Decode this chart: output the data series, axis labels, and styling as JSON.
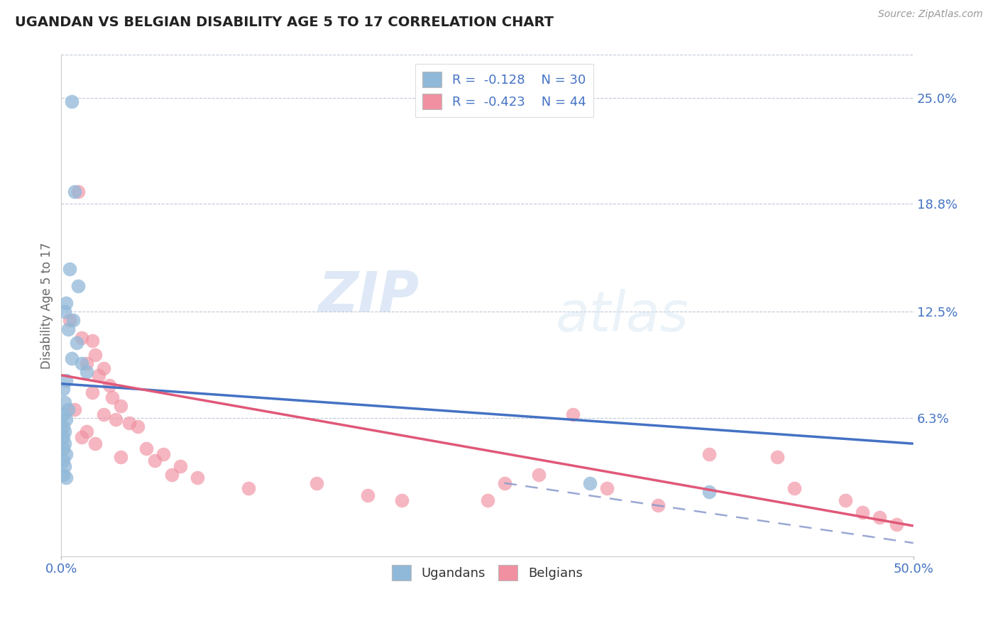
{
  "title": "UGANDAN VS BELGIAN DISABILITY AGE 5 TO 17 CORRELATION CHART",
  "source": "Source: ZipAtlas.com",
  "ylabel": "Disability Age 5 to 17",
  "ytick_labels": [
    "6.3%",
    "12.5%",
    "18.8%",
    "25.0%"
  ],
  "ytick_values": [
    0.063,
    0.125,
    0.188,
    0.25
  ],
  "xlim": [
    0.0,
    0.5
  ],
  "ylim": [
    -0.018,
    0.275
  ],
  "watermark_zip": "ZIP",
  "watermark_atlas": "atlas",
  "ugandan_color": "#90b8d8",
  "belgian_color": "#f090a0",
  "ugandan_line_color": "#4472c4",
  "belgian_line_color": "#e05878",
  "dashed_line_color": "#8899cc",
  "ugandan_points": [
    [
      0.006,
      0.248
    ],
    [
      0.008,
      0.195
    ],
    [
      0.005,
      0.15
    ],
    [
      0.01,
      0.14
    ],
    [
      0.003,
      0.13
    ],
    [
      0.002,
      0.125
    ],
    [
      0.007,
      0.12
    ],
    [
      0.004,
      0.115
    ],
    [
      0.009,
      0.107
    ],
    [
      0.006,
      0.098
    ],
    [
      0.012,
      0.095
    ],
    [
      0.015,
      0.09
    ],
    [
      0.003,
      0.085
    ],
    [
      0.001,
      0.08
    ],
    [
      0.002,
      0.072
    ],
    [
      0.004,
      0.068
    ],
    [
      0.001,
      0.065
    ],
    [
      0.003,
      0.062
    ],
    [
      0.001,
      0.058
    ],
    [
      0.002,
      0.055
    ],
    [
      0.001,
      0.052
    ],
    [
      0.002,
      0.048
    ],
    [
      0.001,
      0.045
    ],
    [
      0.003,
      0.042
    ],
    [
      0.001,
      0.038
    ],
    [
      0.002,
      0.035
    ],
    [
      0.001,
      0.03
    ],
    [
      0.003,
      0.028
    ],
    [
      0.31,
      0.025
    ],
    [
      0.38,
      0.02
    ]
  ],
  "belgian_points": [
    [
      0.01,
      0.195
    ],
    [
      0.005,
      0.12
    ],
    [
      0.012,
      0.11
    ],
    [
      0.018,
      0.108
    ],
    [
      0.02,
      0.1
    ],
    [
      0.015,
      0.095
    ],
    [
      0.025,
      0.092
    ],
    [
      0.022,
      0.088
    ],
    [
      0.028,
      0.082
    ],
    [
      0.018,
      0.078
    ],
    [
      0.03,
      0.075
    ],
    [
      0.035,
      0.07
    ],
    [
      0.008,
      0.068
    ],
    [
      0.025,
      0.065
    ],
    [
      0.032,
      0.062
    ],
    [
      0.04,
      0.06
    ],
    [
      0.045,
      0.058
    ],
    [
      0.015,
      0.055
    ],
    [
      0.012,
      0.052
    ],
    [
      0.02,
      0.048
    ],
    [
      0.05,
      0.045
    ],
    [
      0.06,
      0.042
    ],
    [
      0.035,
      0.04
    ],
    [
      0.055,
      0.038
    ],
    [
      0.07,
      0.035
    ],
    [
      0.065,
      0.03
    ],
    [
      0.08,
      0.028
    ],
    [
      0.15,
      0.025
    ],
    [
      0.11,
      0.022
    ],
    [
      0.18,
      0.018
    ],
    [
      0.2,
      0.015
    ],
    [
      0.25,
      0.015
    ],
    [
      0.3,
      0.065
    ],
    [
      0.38,
      0.042
    ],
    [
      0.28,
      0.03
    ],
    [
      0.26,
      0.025
    ],
    [
      0.32,
      0.022
    ],
    [
      0.42,
      0.04
    ],
    [
      0.43,
      0.022
    ],
    [
      0.46,
      0.015
    ],
    [
      0.35,
      0.012
    ],
    [
      0.47,
      0.008
    ],
    [
      0.48,
      0.005
    ],
    [
      0.49,
      0.001
    ]
  ],
  "ugandan_line": {
    "x0": 0.0,
    "y0": 0.083,
    "x1": 0.5,
    "y1": 0.048
  },
  "belgian_line": {
    "x0": 0.0,
    "y0": 0.088,
    "x1": 0.5,
    "y1": 0.0
  },
  "dashed_line": {
    "x0": 0.26,
    "y0": 0.025,
    "x1": 0.5,
    "y1": -0.01
  }
}
